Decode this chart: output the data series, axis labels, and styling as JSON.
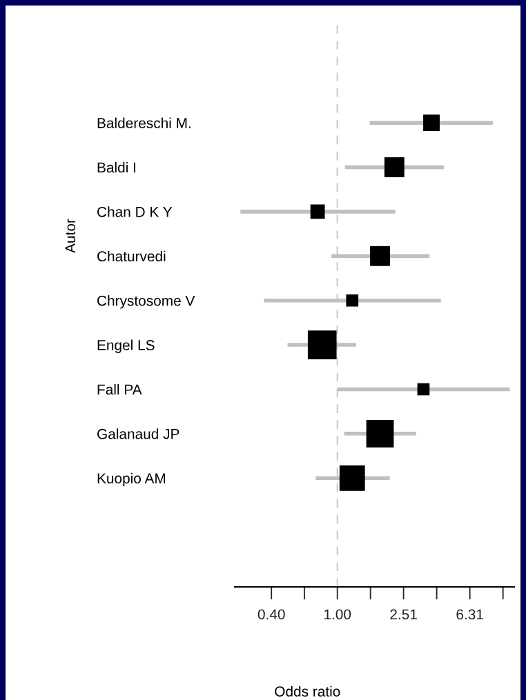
{
  "chart_data": {
    "type": "scatter",
    "xlabel": "Odds ratio",
    "ylabel": "Autor",
    "categories": [
      "Baldereschi M.",
      "Baldi I",
      "Chan D K Y",
      "Chaturvedi",
      "Chrystosome V",
      "Engel LS",
      "Fall PA",
      "Galanaud JP",
      "Kuopio AM"
    ],
    "orientation": "horizontal",
    "series": [
      {
        "color": "#000000",
        "marker": "square",
        "values": [
          3.7,
          2.21,
          0.76,
          1.81,
          1.23,
          0.81,
          3.31,
          1.81,
          1.23
        ],
        "errors": [
          [
            1.57,
            8.69
          ],
          [
            1.11,
            4.41
          ],
          [
            0.26,
            2.24
          ],
          [
            0.92,
            3.6
          ],
          [
            0.36,
            4.22
          ],
          [
            0.5,
            1.3
          ],
          [
            1.0,
            11.0
          ],
          [
            1.1,
            2.99
          ],
          [
            0.74,
            2.07
          ]
        ],
        "sizes": [
          0.33,
          0.48,
          0.25,
          0.48,
          0.18,
          1,
          0.18,
          0.91,
          0.78
        ]
      }
    ],
    "log": "x",
    "xlim": [
      0.24,
      11.7
    ],
    "xticks": [
      {
        "value": 0.4,
        "label": "0.40"
      },
      {
        "value": 1,
        "label": "1.00"
      },
      {
        "value": 2.51,
        "label": "2.51"
      },
      {
        "value": 6.31,
        "label": "6.31"
      }
    ],
    "ref_lines": [
      {
        "axis": "x",
        "value": 1,
        "color": "#c8c8c8",
        "line_style": "dashed"
      }
    ],
    "grid": false,
    "legend": false
  }
}
